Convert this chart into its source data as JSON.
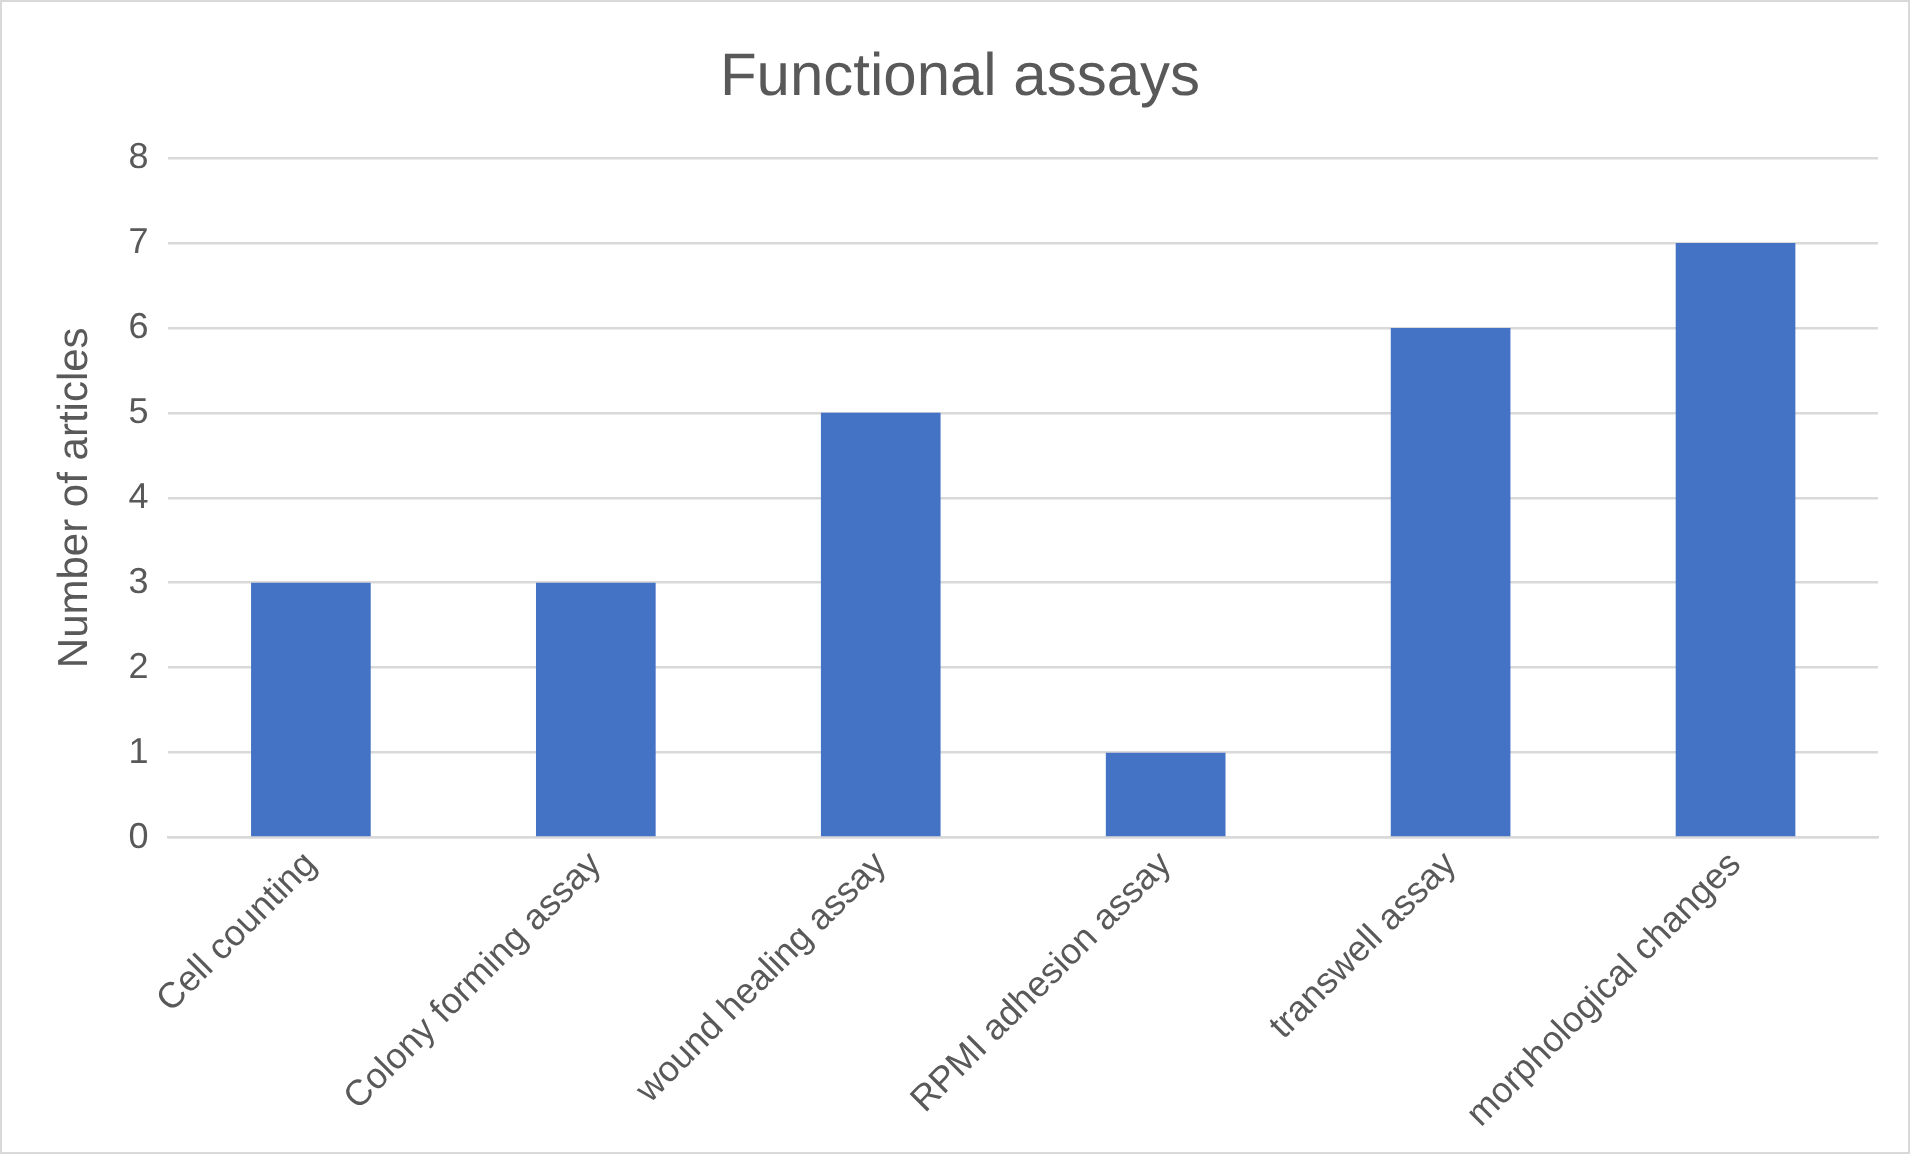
{
  "chart_data": {
    "type": "bar",
    "title": "Functional assays",
    "ylabel": "Number of articles",
    "categories": [
      "Cell counting",
      "Colony forming assay",
      "wound healing assay",
      "RPMI adhesion assay",
      "transwell assay",
      "morphological changes"
    ],
    "values": [
      3,
      3,
      5,
      1,
      6,
      7
    ],
    "color": "#4472c4",
    "ylim": [
      0,
      8
    ],
    "yticks": [
      0,
      1,
      2,
      3,
      4,
      5,
      6,
      7,
      8
    ],
    "grid": "y"
  }
}
